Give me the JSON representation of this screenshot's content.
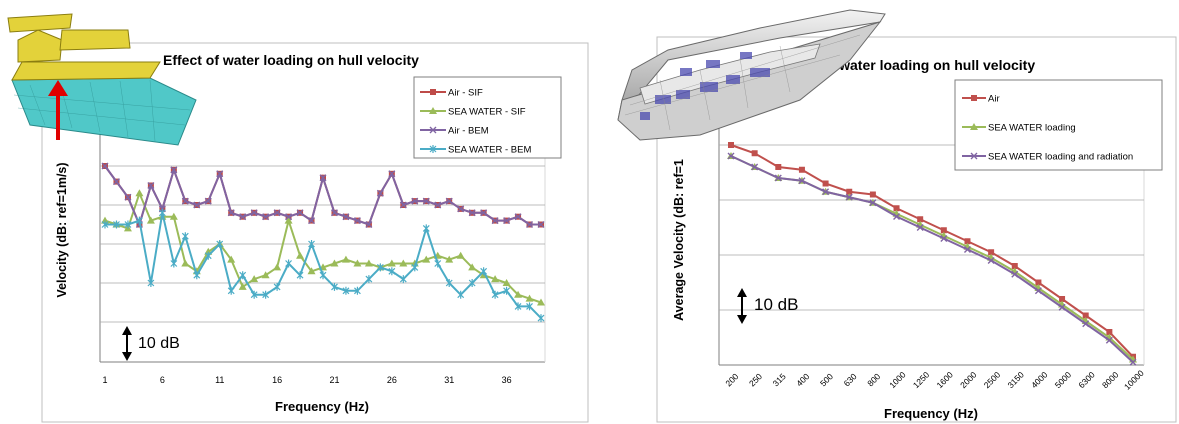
{
  "chart_data": [
    {
      "type": "line",
      "title": "Effect of water loading on hull velocity",
      "xlabel": "Frequency (Hz)",
      "ylabel": "Velocity (dB: ref=1m/s)",
      "x_ticks": [
        "1",
        "6",
        "11",
        "16",
        "21",
        "26",
        "31",
        "36"
      ],
      "x": [
        1,
        2,
        3,
        4,
        5,
        6,
        7,
        8,
        9,
        10,
        11,
        12,
        13,
        14,
        15,
        16,
        17,
        18,
        19,
        20,
        21,
        22,
        23,
        24,
        25,
        26,
        27,
        28,
        29,
        30,
        31,
        32,
        33,
        34,
        35,
        36,
        37,
        38,
        39
      ],
      "y_units": "dB relative to top of plot, grid every 10 dB",
      "ylim": [
        -40,
        0
      ],
      "grid": true,
      "legend_position": "top-right",
      "scale_annotation": "10 dB",
      "series": [
        {
          "name": "Air - SIF",
          "color": "#be4b48",
          "marker": "square",
          "values": [
            0,
            -4,
            -8,
            -15,
            -5,
            -11,
            -1,
            -9,
            -10,
            -9,
            -2,
            -12,
            -13,
            -12,
            -13,
            -12,
            -13,
            -12,
            -14,
            -3,
            -12,
            -13,
            -14,
            -15,
            -7,
            -2,
            -10,
            -9,
            -9,
            -10,
            -9,
            -11,
            -12,
            -12,
            -14,
            -14,
            -13,
            -15,
            -15
          ]
        },
        {
          "name": "SEA WATER - SIF",
          "color": "#9bbb59",
          "marker": "triangle",
          "values": [
            -14,
            -15,
            -16,
            -7,
            -14,
            -13,
            -13,
            -25,
            -27,
            -22,
            -20,
            -24,
            -31,
            -29,
            -28,
            -26,
            -14,
            -23,
            -27,
            -26,
            -25,
            -24,
            -25,
            -25,
            -26,
            -25,
            -25,
            -25,
            -24,
            -23,
            -24,
            -23,
            -26,
            -28,
            -29,
            -30,
            -33,
            -34,
            -35
          ]
        },
        {
          "name": "Air - BEM",
          "color": "#8064a2",
          "marker": "x",
          "values": [
            0,
            -4,
            -8,
            -15,
            -5,
            -11,
            -1,
            -9,
            -10,
            -9,
            -2,
            -12,
            -13,
            -12,
            -13,
            -12,
            -13,
            -12,
            -14,
            -3,
            -12,
            -13,
            -14,
            -15,
            -7,
            -2,
            -10,
            -9,
            -9,
            -10,
            -9,
            -11,
            -12,
            -12,
            -14,
            -14,
            -13,
            -15,
            -15
          ]
        },
        {
          "name": "SEA WATER - BEM",
          "color": "#4bacc6",
          "marker": "star",
          "values": [
            -15,
            -15,
            -15,
            -14,
            -30,
            -12,
            -25,
            -18,
            -28,
            -23,
            -20,
            -32,
            -28,
            -33,
            -33,
            -31,
            -25,
            -28,
            -20,
            -28,
            -31,
            -32,
            -32,
            -29,
            -26,
            -27,
            -29,
            -26,
            -16,
            -25,
            -30,
            -33,
            -30,
            -27,
            -33,
            -32,
            -36,
            -36,
            -39
          ]
        }
      ]
    },
    {
      "type": "line",
      "title": "of water loading on hull velocity",
      "xlabel": "Frequency (Hz)",
      "ylabel": "Average Velocity (dB: ref=1",
      "categories": [
        "200",
        "250",
        "315",
        "400",
        "500",
        "630",
        "800",
        "1000",
        "1250",
        "1600",
        "2000",
        "2500",
        "3150",
        "4000",
        "5000",
        "6300",
        "8000",
        "10000"
      ],
      "y_units": "dB relative to top of plot, grid every 10 dB",
      "ylim": [
        -50,
        0
      ],
      "grid": true,
      "legend_position": "top-right",
      "scale_annotation": "10 dB",
      "series": [
        {
          "name": "Air",
          "color": "#c0504d",
          "marker": "square",
          "values": [
            -10,
            -11.5,
            -14,
            -14.5,
            -17,
            -18.5,
            -19,
            -21.5,
            -23.5,
            -25.5,
            -27.5,
            -29.5,
            -32,
            -35,
            -38,
            -41,
            -44,
            -48.5
          ]
        },
        {
          "name": "SEA WATER loading",
          "color": "#9bbb59",
          "marker": "triangle",
          "values": [
            -12,
            -14,
            -16,
            -16.5,
            -18.5,
            -19.5,
            -20.5,
            -22.5,
            -24.5,
            -26.5,
            -28.5,
            -30.5,
            -33,
            -36,
            -39,
            -42,
            -45,
            -49
          ]
        },
        {
          "name": "SEA WATER loading and  radiation",
          "color": "#8064a2",
          "marker": "x",
          "values": [
            -12,
            -14,
            -16,
            -16.5,
            -18.5,
            -19.5,
            -20.5,
            -23,
            -25,
            -27,
            -29,
            -31,
            -33.5,
            -36.5,
            -39.5,
            -42.5,
            -45.5,
            -49.5
          ]
        }
      ]
    }
  ]
}
